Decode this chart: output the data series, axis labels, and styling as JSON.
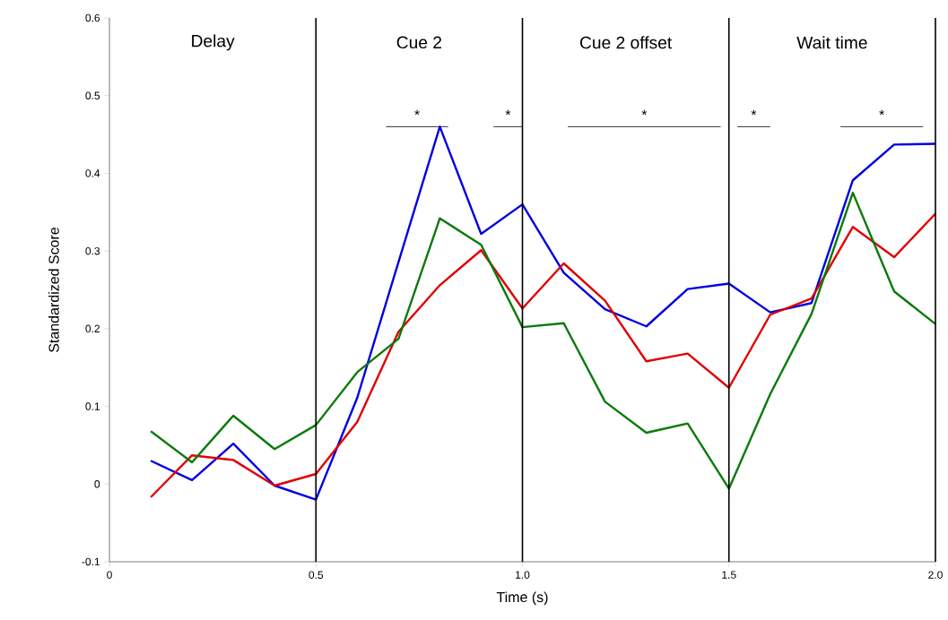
{
  "chart_data": {
    "type": "line",
    "xlabel": "Time (s)",
    "ylabel": "Standardized Score",
    "x": [
      0.1,
      0.2,
      0.3,
      0.4,
      0.5,
      0.6,
      0.7,
      0.8,
      0.9,
      1.0,
      1.1,
      1.2,
      1.3,
      1.4,
      1.5,
      1.6,
      1.7,
      1.8,
      1.9,
      2.0
    ],
    "series": [
      {
        "color": "#0000e0",
        "values": [
          0.03,
          0.005,
          0.052,
          -0.002,
          -0.02,
          0.111,
          0.286,
          0.46,
          0.322,
          0.36,
          0.272,
          0.225,
          0.203,
          0.251,
          0.258,
          0.221,
          0.233,
          0.391,
          0.437,
          0.438
        ]
      },
      {
        "color": "#e00000",
        "values": [
          -0.017,
          0.037,
          0.031,
          -0.002,
          0.013,
          0.08,
          0.196,
          0.256,
          0.301,
          0.226,
          0.284,
          0.236,
          0.158,
          0.168,
          0.124,
          0.218,
          0.239,
          0.331,
          0.292,
          0.348
        ]
      },
      {
        "color": "#0a7a0a",
        "values": [
          0.068,
          0.028,
          0.088,
          0.045,
          0.076,
          0.144,
          0.187,
          0.342,
          0.308,
          0.202,
          0.207,
          0.106,
          0.066,
          0.078,
          -0.006,
          0.116,
          0.219,
          0.375,
          0.248,
          0.206
        ]
      }
    ],
    "xlim": [
      0,
      2.0
    ],
    "ylim": [
      -0.1,
      0.6
    ],
    "xticks": [
      0,
      0.5,
      {
        "value": 1.0,
        "label": "1.0"
      },
      1.5,
      {
        "value": 2.0,
        "label": "2.0"
      }
    ],
    "yticks": [
      -0.1,
      0,
      0.1,
      0.2,
      0.3,
      0.4,
      0.5,
      0.6
    ],
    "marker": "none",
    "line_style": "solid",
    "ref_lines": [
      {
        "axis": "x",
        "value": 0.5,
        "color": "#000000"
      },
      {
        "axis": "x",
        "value": 1.0,
        "color": "#000000"
      },
      {
        "axis": "x",
        "value": 1.5,
        "color": "#000000"
      }
    ],
    "annotations": [
      "Delay",
      "Cue 2",
      "Cue 2 offset",
      "Wait time",
      "*",
      "*",
      "*",
      "*",
      "*"
    ]
  }
}
